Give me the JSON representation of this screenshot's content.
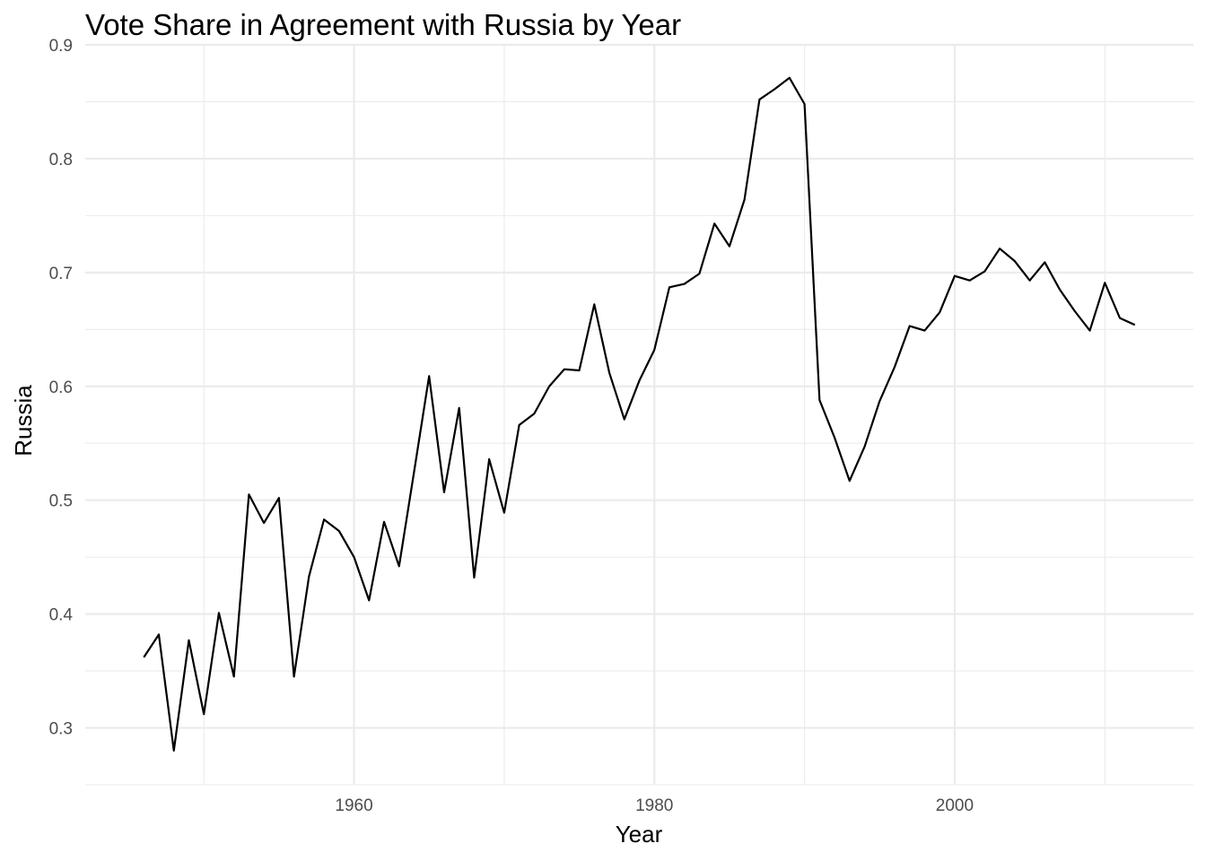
{
  "chart_data": {
    "type": "line",
    "title": "Vote Share in Agreement with Russia by Year",
    "xlabel": "Year",
    "ylabel": "Russia",
    "xlim": [
      1942.1,
      2015.9
    ],
    "ylim": [
      0.25,
      0.9
    ],
    "x_ticks": [
      1960,
      1980,
      2000
    ],
    "x_tick_labels": [
      "1960",
      "1980",
      "2000"
    ],
    "x_minor_ticks": [
      1950,
      1970,
      1990,
      2010
    ],
    "y_ticks": [
      0.3,
      0.4,
      0.5,
      0.6,
      0.7,
      0.8,
      0.9
    ],
    "y_tick_labels": [
      "0.3",
      "0.4",
      "0.5",
      "0.6",
      "0.7",
      "0.8",
      "0.9"
    ],
    "y_minor_ticks": [
      0.25,
      0.35,
      0.45,
      0.55,
      0.65,
      0.75,
      0.85
    ],
    "grid": true,
    "legend": "none",
    "line_color": "#000000",
    "series": [
      {
        "x": [
          1946,
          1947,
          1948,
          1949,
          1950,
          1951,
          1952,
          1953,
          1954,
          1955,
          1956,
          1957,
          1958,
          1959,
          1960,
          1961,
          1962,
          1963,
          1964,
          1965,
          1966,
          1967,
          1968,
          1969,
          1970,
          1971,
          1972,
          1973,
          1974,
          1975,
          1976,
          1977,
          1978,
          1979,
          1980,
          1981,
          1982,
          1983,
          1984,
          1985,
          1986,
          1987,
          1988,
          1989,
          1990,
          1991,
          1992,
          1993,
          1994,
          1995,
          1996,
          1997,
          1998,
          1999,
          2000,
          2001,
          2002,
          2003,
          2004,
          2005,
          2006,
          2007,
          2008,
          2009,
          2010,
          2011,
          2012
        ],
        "y": [
          0.362,
          0.382,
          0.28,
          0.377,
          0.312,
          0.401,
          0.345,
          0.505,
          0.48,
          0.502,
          0.345,
          0.433,
          0.483,
          0.473,
          0.45,
          0.412,
          0.481,
          0.442,
          0.525,
          0.609,
          0.507,
          0.581,
          0.432,
          0.536,
          0.489,
          0.566,
          0.576,
          0.6,
          0.615,
          0.614,
          0.672,
          0.612,
          0.571,
          0.605,
          0.632,
          0.687,
          0.69,
          0.699,
          0.743,
          0.723,
          0.764,
          0.852,
          0.861,
          0.871,
          0.848,
          0.588,
          0.555,
          0.517,
          0.547,
          0.587,
          0.617,
          0.653,
          0.649,
          0.665,
          0.697,
          0.693,
          0.701,
          0.721,
          0.71,
          0.693,
          0.709,
          0.685,
          0.666,
          0.649,
          0.691,
          0.66,
          0.654
        ]
      }
    ]
  }
}
